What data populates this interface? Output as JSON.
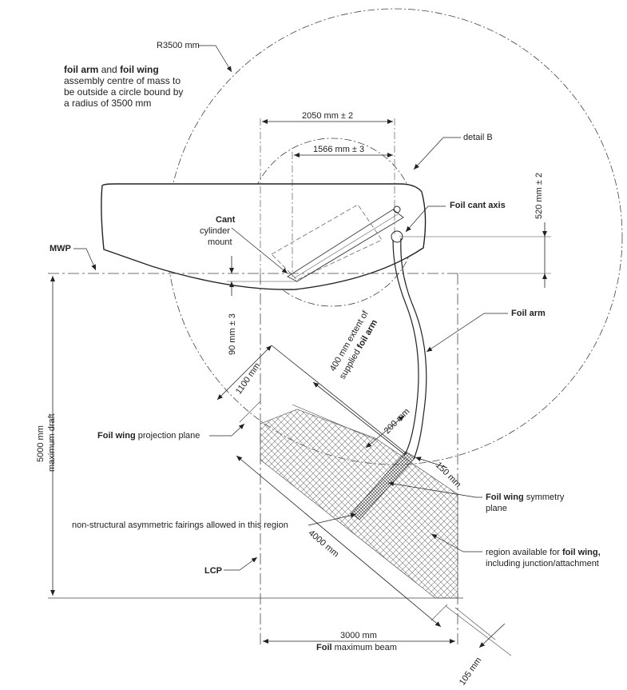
{
  "labels": {
    "r3500": "R3500 mm",
    "note_b1": "foil arm",
    "note_and": "and",
    "note_b2": "foil wing",
    "note_l2": "assembly centre of mass to",
    "note_l3": "be outside a circle bound by",
    "note_l4": "a radius of 3500 mm",
    "dim2050": "2050 mm ± 2",
    "dim1566": "1566 mm ± 3",
    "detailB": "detail B",
    "dim520": "520 mm ± 2",
    "cant_b": "Cant",
    "cant_l2": "cylinder",
    "cant_l3": "mount",
    "foil_cant_axis": "Foil cant axis",
    "mwp": "MWP",
    "dim90": "90 mm ± 3",
    "foil_arm": "Foil arm",
    "ext1": "400 mm extent of",
    "ext2a": "supplied",
    "ext2b": "foil arm",
    "dim1100": "1100 mm",
    "dim200": "200 mm",
    "proj_b": "Foil wing",
    "proj_t": "projection plane",
    "draft1": "5000 mm",
    "draft2": "maximum draft",
    "dim150": "150 mm",
    "sym_b": "Foil wing",
    "sym_t": "symmetry",
    "sym_l2": "plane",
    "fairings": "non-structural asymmetric fairings allowed in this region",
    "dim4000": "4000 mm",
    "region1": "region available for",
    "region1b": "foil wing,",
    "region2": "including junction/attachment",
    "lcp": "LCP",
    "beam1": "3000 mm",
    "beam2b": "Foil",
    "beam2": "maximum beam",
    "dim105": "105 mm"
  }
}
